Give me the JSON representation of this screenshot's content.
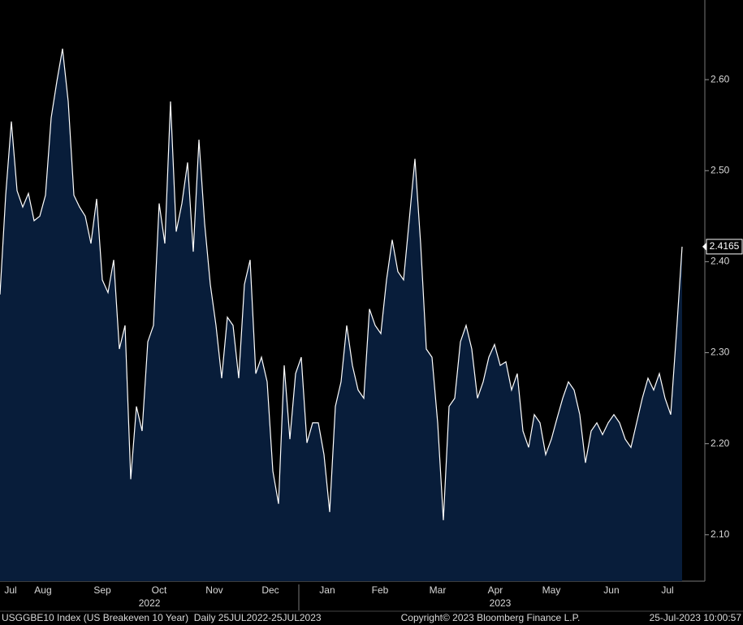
{
  "chart_data": {
    "type": "area",
    "line_color": "#ffffff",
    "fill_color": "#081d3a",
    "values": [
      2.364,
      2.473,
      2.554,
      2.478,
      2.46,
      2.475,
      2.445,
      2.45,
      2.473,
      2.558,
      2.598,
      2.634,
      2.576,
      2.473,
      2.46,
      2.45,
      2.42,
      2.469,
      2.38,
      2.366,
      2.402,
      2.304,
      2.33,
      2.161,
      2.241,
      2.214,
      2.312,
      2.33,
      2.464,
      2.42,
      2.576,
      2.433,
      2.464,
      2.509,
      2.411,
      2.534,
      2.442,
      2.375,
      2.33,
      2.272,
      2.339,
      2.33,
      2.272,
      2.375,
      2.402,
      2.277,
      2.295,
      2.268,
      2.17,
      2.134,
      2.286,
      2.205,
      2.277,
      2.295,
      2.201,
      2.223,
      2.223,
      2.188,
      2.125,
      2.241,
      2.268,
      2.33,
      2.286,
      2.259,
      2.25,
      2.348,
      2.33,
      2.321,
      2.38,
      2.424,
      2.389,
      2.38,
      2.446,
      2.513,
      2.42,
      2.304,
      2.295,
      2.223,
      2.116,
      2.241,
      2.25,
      2.312,
      2.33,
      2.304,
      2.25,
      2.268,
      2.295,
      2.309,
      2.286,
      2.29,
      2.259,
      2.277,
      2.214,
      2.196,
      2.232,
      2.223,
      2.188,
      2.205,
      2.228,
      2.25,
      2.268,
      2.259,
      2.232,
      2.179,
      2.214,
      2.223,
      2.21,
      2.223,
      2.232,
      2.223,
      2.205,
      2.196,
      2.223,
      2.25,
      2.272,
      2.259,
      2.277,
      2.25,
      2.232,
      2.321,
      2.4165
    ],
    "xlim": [
      0,
      124
    ],
    "xticks": [
      {
        "value": 1.86,
        "label": "Jul"
      },
      {
        "value": 7.57,
        "label": "Aug"
      },
      {
        "value": 18,
        "label": "Sep"
      },
      {
        "value": 28,
        "label": "Oct"
      },
      {
        "value": 37.71,
        "label": "Nov"
      },
      {
        "value": 47.57,
        "label": "Dec"
      },
      {
        "value": 57.57,
        "label": "Jan"
      },
      {
        "value": 66.86,
        "label": "Feb"
      },
      {
        "value": 77,
        "label": "Mar"
      },
      {
        "value": 87.14,
        "label": "Apr"
      },
      {
        "value": 97,
        "label": "May"
      },
      {
        "value": 107.57,
        "label": "Jun"
      },
      {
        "value": 117.43,
        "label": "Jul"
      }
    ],
    "year_labels": [
      {
        "value": 26.3,
        "label": "2022"
      },
      {
        "value": 88,
        "label": "2023"
      }
    ],
    "ylim": [
      2.049,
      2.6875
    ],
    "yticks": [
      {
        "value": 2.1,
        "label": "2.10"
      },
      {
        "value": 2.2,
        "label": "2.20"
      },
      {
        "value": 2.3,
        "label": "2.30"
      },
      {
        "value": 2.4,
        "label": "2.40"
      },
      {
        "value": 2.5,
        "label": "2.50"
      },
      {
        "value": 2.6,
        "label": "2.60"
      }
    ],
    "footer_left": "USGGBE10 Index (US Breakeven 10 Year)  Daily 25JUL2022-25JUL2023",
    "footer_center": "Copyright© 2023 Bloomberg Finance L.P.",
    "footer_right": "25-Jul-2023 10:00:57"
  }
}
